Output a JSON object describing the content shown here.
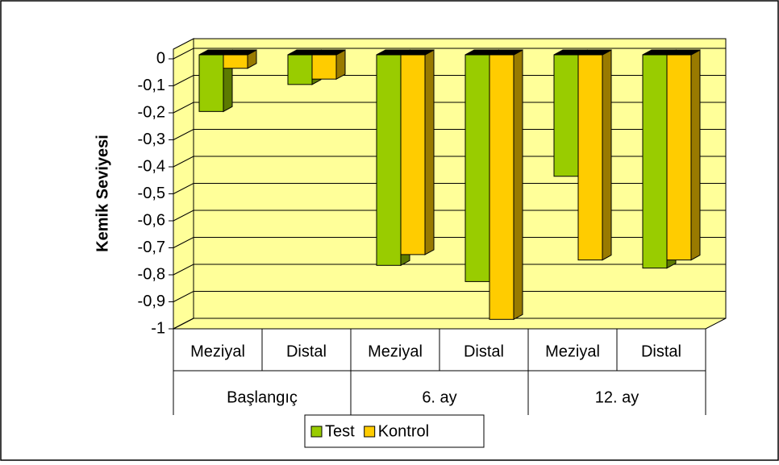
{
  "chart_data": {
    "type": "bar3d",
    "y_label": "Kemik Seviyesi",
    "categories": [
      "Meziyal",
      "Distal",
      "Meziyal",
      "Distal",
      "Meziyal",
      "Distal"
    ],
    "groups": [
      "Başlangıç",
      "6. ay",
      "12. ay"
    ],
    "series": [
      {
        "name": "Test",
        "color": "#99cc00",
        "values": [
          -0.21,
          -0.11,
          -0.78,
          -0.84,
          -0.45,
          -0.79
        ]
      },
      {
        "name": "Kontrol",
        "color": "#ffcc00",
        "values": [
          -0.05,
          -0.09,
          -0.74,
          -0.98,
          -0.76,
          -0.76
        ]
      }
    ],
    "ylim": [
      -1,
      0
    ],
    "yticks": [
      0,
      {
        "value": -0.1,
        "label": "-0,1"
      },
      {
        "value": -0.2,
        "label": "-0,2"
      },
      {
        "value": -0.3,
        "label": "-0,3"
      },
      {
        "value": -0.4,
        "label": "-0,4"
      },
      {
        "value": -0.5,
        "label": "-0,5"
      },
      {
        "value": -0.6,
        "label": "-0,6"
      },
      {
        "value": -0.7,
        "label": "-0,7"
      },
      {
        "value": -0.8,
        "label": "-0,8"
      },
      {
        "value": -0.9,
        "label": "-0,9"
      },
      -1
    ],
    "grid": true,
    "legend": "bottom"
  }
}
